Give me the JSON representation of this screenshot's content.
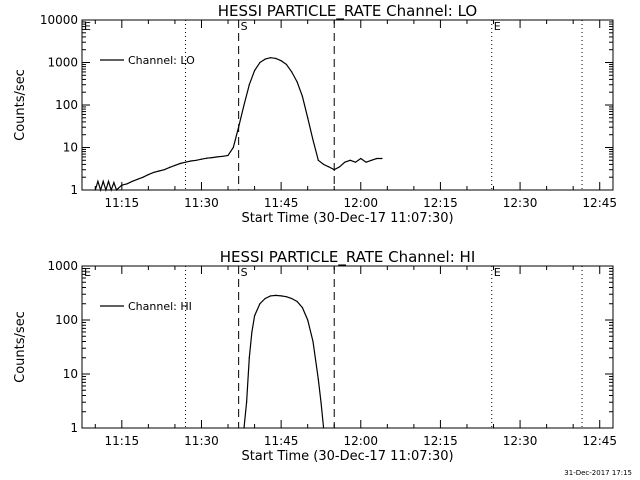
{
  "timestamp": "31-Dec-2017 17:15",
  "chart_data": [
    {
      "type": "line",
      "title": "HESSI PARTICLE_RATE Channel: LO",
      "xlabel": "Start Time (30-Dec-17 11:07:30)",
      "ylabel": "Counts/sec",
      "yscale": "log",
      "ylim": [
        1,
        10000
      ],
      "xlim": [
        "11:07:30",
        "12:47:30"
      ],
      "xticks": [
        "11:15",
        "11:30",
        "11:45",
        "12:00",
        "12:15",
        "12:30",
        "12:45"
      ],
      "yticks": [
        "1",
        "10",
        "100",
        "1000",
        "10000"
      ],
      "legend": "top-left",
      "series": [
        {
          "name": "Channel: LO",
          "x": [
            "11:10:00",
            "11:10:30",
            "11:11:00",
            "11:11:30",
            "11:12:00",
            "11:12:30",
            "11:13:00",
            "11:13:30",
            "11:14:00",
            "11:15:00",
            "11:16:00",
            "11:17:00",
            "11:18:00",
            "11:19:00",
            "11:20:00",
            "11:21:00",
            "11:22:00",
            "11:23:00",
            "11:24:00",
            "11:25:00",
            "11:26:00",
            "11:27:00",
            "11:28:00",
            "11:29:00",
            "11:30:00",
            "11:31:00",
            "11:32:00",
            "11:33:00",
            "11:34:00",
            "11:35:00",
            "11:36:00",
            "11:37:00",
            "11:38:00",
            "11:39:00",
            "11:40:00",
            "11:41:00",
            "11:42:00",
            "11:43:00",
            "11:44:00",
            "11:45:00",
            "11:46:00",
            "11:47:00",
            "11:48:00",
            "11:49:00",
            "11:50:00",
            "11:51:00",
            "11:52:00",
            "11:53:00",
            "11:54:00",
            "11:55:00",
            "11:56:00",
            "11:57:00",
            "11:58:00",
            "11:59:00",
            "12:00:00",
            "12:01:00",
            "12:02:00",
            "12:03:00",
            "12:04:00"
          ],
          "y": [
            1.0,
            1.6,
            1.0,
            1.6,
            1.0,
            1.6,
            1.0,
            1.5,
            1.0,
            1.3,
            1.4,
            1.6,
            1.8,
            2.0,
            2.3,
            2.6,
            2.8,
            3.0,
            3.4,
            3.8,
            4.2,
            4.5,
            4.8,
            5.0,
            5.3,
            5.6,
            5.8,
            6.0,
            6.2,
            6.5,
            10,
            30,
            100,
            300,
            650,
            1000,
            1200,
            1300,
            1250,
            1100,
            900,
            600,
            350,
            160,
            50,
            15,
            5.0,
            4.0,
            3.5,
            3.0,
            3.5,
            4.5,
            5.0,
            4.5,
            5.5,
            4.5,
            5.0,
            5.5,
            5.5
          ]
        }
      ],
      "annotations": [
        {
          "label": "S",
          "x": "11:37:00",
          "line": "dashed"
        },
        {
          "label": "",
          "x": "11:55:00",
          "line": "dashed"
        },
        {
          "label": "E",
          "x": "12:24:40",
          "line": "dotted"
        },
        {
          "label": "",
          "x": "11:27:00",
          "line": "dotted"
        },
        {
          "label": "",
          "x": "12:41:40",
          "line": "dotted"
        },
        {
          "label": "E",
          "x": "11:07:30",
          "line": "none"
        }
      ]
    },
    {
      "type": "line",
      "title": "HESSI PARTICLE_RATE Channel: HI",
      "xlabel": "Start Time (30-Dec-17 11:07:30)",
      "ylabel": "Counts/sec",
      "yscale": "log",
      "ylim": [
        1,
        1000
      ],
      "xlim": [
        "11:07:30",
        "12:47:30"
      ],
      "xticks": [
        "11:15",
        "11:30",
        "11:45",
        "12:00",
        "12:15",
        "12:30",
        "12:45"
      ],
      "yticks": [
        "1",
        "10",
        "100",
        "1000"
      ],
      "legend": "top-left",
      "series": [
        {
          "name": "Channel: HI",
          "x": [
            "11:38:00",
            "11:38:30",
            "11:39:00",
            "11:39:30",
            "11:40:00",
            "11:41:00",
            "11:42:00",
            "11:43:00",
            "11:44:00",
            "11:45:00",
            "11:46:00",
            "11:47:00",
            "11:48:00",
            "11:49:00",
            "11:50:00",
            "11:51:00",
            "11:52:00",
            "11:52:30",
            "11:53:00"
          ],
          "y": [
            1.0,
            3.0,
            20,
            60,
            120,
            200,
            250,
            280,
            285,
            280,
            270,
            250,
            220,
            170,
            100,
            40,
            8,
            3,
            1.0
          ]
        }
      ],
      "annotations": [
        {
          "label": "S",
          "x": "11:37:00",
          "line": "dashed"
        },
        {
          "label": "",
          "x": "11:55:00",
          "line": "dashed"
        },
        {
          "label": "E",
          "x": "12:24:40",
          "line": "dotted"
        },
        {
          "label": "",
          "x": "11:27:00",
          "line": "dotted"
        },
        {
          "label": "",
          "x": "12:41:40",
          "line": "dotted"
        },
        {
          "label": "E",
          "x": "11:07:30",
          "line": "none"
        }
      ]
    }
  ]
}
